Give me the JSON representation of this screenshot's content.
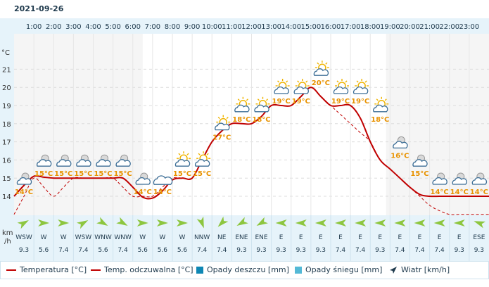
{
  "date": "2021-09-26",
  "chart_data": {
    "type": "line",
    "y_unit": "°C",
    "y_ticks": [
      14,
      15,
      16,
      17,
      18,
      19,
      20,
      21
    ],
    "hours": [
      "1:00",
      "2:00",
      "3:00",
      "4:00",
      "5:00",
      "6:00",
      "7:00",
      "8:00",
      "9:00",
      "10:00",
      "11:00",
      "12:00",
      "13:00",
      "14:00",
      "15:00",
      "16:00",
      "17:00",
      "18:00",
      "19:00",
      "20:00",
      "21:00",
      "22:00",
      "23:00"
    ],
    "series": [
      {
        "name": "Temperatura [°C]",
        "color": "#c00000",
        "style": "solid",
        "x": [
          0,
          0.5,
          1,
          1.5,
          2,
          2.5,
          3,
          3.5,
          4,
          4.5,
          5,
          5.5,
          6,
          6.5,
          7,
          7.5,
          8,
          8.5,
          9,
          9.5,
          10,
          10.5,
          11,
          11.5,
          12,
          12.5,
          13,
          13.5,
          14,
          14.5,
          15,
          15.5,
          16,
          16.5,
          17,
          17.5,
          18,
          18.5,
          19,
          19.5,
          20,
          20.5,
          21,
          21.5,
          22,
          22.5,
          23,
          23.5,
          24
        ],
        "values": [
          14.0,
          14.6,
          15.1,
          15.05,
          15.0,
          15.0,
          15.0,
          15.0,
          15.0,
          15.0,
          15.0,
          15.0,
          14.5,
          13.95,
          13.9,
          14.3,
          14.9,
          15.0,
          15.0,
          16.0,
          17.0,
          17.6,
          18.0,
          18.0,
          18.0,
          18.4,
          19.0,
          19.0,
          19.0,
          19.5,
          20.0,
          19.5,
          19.0,
          19.0,
          19.0,
          18.3,
          17.0,
          16.0,
          15.5,
          15.0,
          14.5,
          14.1,
          14.0,
          14.0,
          14.0,
          14.0,
          14.0,
          14.0,
          14.0
        ]
      },
      {
        "name": "Temp. odczuwalna [°C]",
        "color": "#c00000",
        "style": "dashed",
        "x": [
          0,
          0.5,
          1,
          1.5,
          2,
          2.5,
          3,
          3.5,
          4,
          4.5,
          5,
          5.5,
          6,
          6.5,
          7,
          7.5,
          8,
          8.5,
          9,
          9.5,
          10,
          10.5,
          11,
          11.5,
          12,
          12.5,
          13,
          13.5,
          14,
          14.5,
          15,
          15.5,
          16,
          16.5,
          17,
          17.5,
          18,
          18.5,
          19,
          19.5,
          20,
          20.5,
          21,
          21.5,
          22,
          22.5,
          23,
          23.5,
          24
        ],
        "values": [
          13.0,
          14.0,
          15.0,
          14.5,
          14.0,
          14.5,
          15.0,
          15.0,
          15.0,
          15.0,
          15.0,
          14.5,
          14.0,
          14.0,
          14.0,
          14.5,
          15.0,
          15.0,
          15.0,
          16.0,
          17.0,
          17.6,
          18.0,
          18.0,
          18.0,
          18.4,
          19.0,
          19.0,
          19.0,
          19.5,
          20.0,
          19.5,
          19.0,
          18.5,
          18.0,
          17.5,
          17.0,
          16.0,
          15.5,
          15.0,
          14.5,
          14.0,
          13.5,
          13.2,
          13.0,
          13.0,
          13.0,
          13.0,
          13.0
        ]
      }
    ],
    "hourly_labels": [
      "14°C",
      "15°C",
      "15°C",
      "15°C",
      "15°C",
      "15°C",
      "14°C",
      "14°C",
      "15°C",
      "15°C",
      "17°C",
      "18°C",
      "18°C",
      "19°C",
      "19°C",
      "20°C",
      "19°C",
      "19°C",
      "18°C",
      "16°C",
      "15°C",
      "14°C",
      "14°C",
      "14°C"
    ],
    "icons": [
      "cloud-moon",
      "cloud-moon",
      "cloud-moon",
      "cloud-moon",
      "cloud-moon",
      "cloud-moon",
      "cloud-moon",
      "cloud",
      "cloud-sun",
      "cloud-sun",
      "cloud-sun",
      "cloud-sun",
      "cloud-sun",
      "cloud-sun",
      "cloud-sun",
      "cloud-sun",
      "cloud-sun",
      "cloud-sun",
      "cloud-sun",
      "cloud-moon",
      "cloud-moon",
      "cloud-moon",
      "cloud-moon",
      "cloud-moon"
    ],
    "wind_unit": "km\n/h",
    "wind_dir": [
      "WSW",
      "W",
      "W",
      "WSW",
      "WNW",
      "WNW",
      "W",
      "W",
      "W",
      "NNW",
      "NE",
      "ENE",
      "ENE",
      "E",
      "E",
      "E",
      "E",
      "E",
      "E",
      "E",
      "E",
      "E",
      "E",
      "ESE"
    ],
    "wind_speed": [
      "9.3",
      "5.6",
      "7.4",
      "7.4",
      "5.6",
      "7.4",
      "5.6",
      "5.6",
      "5.6",
      "7.4",
      "7.4",
      "9.3",
      "9.3",
      "9.3",
      "9.3",
      "9.3",
      "7.4",
      "7.4",
      "9.3",
      "7.4",
      "7.4",
      "7.4",
      "9.3",
      "9.3"
    ],
    "wind_angle": [
      60,
      90,
      90,
      60,
      120,
      120,
      90,
      90,
      90,
      160,
      225,
      240,
      240,
      270,
      270,
      270,
      270,
      270,
      270,
      270,
      270,
      270,
      270,
      290
    ],
    "colors": {
      "rain": "#0e87b4",
      "snow": "#54b9d6",
      "wind": "#8dc63f"
    }
  },
  "legend": {
    "temp": "Temperatura [°C]",
    "feels": "Temp. odczuwalna [°C]",
    "rain": "Opady deszczu [mm]",
    "snow": "Opady śniegu [mm]",
    "wind": "Wiatr [km/h]"
  }
}
